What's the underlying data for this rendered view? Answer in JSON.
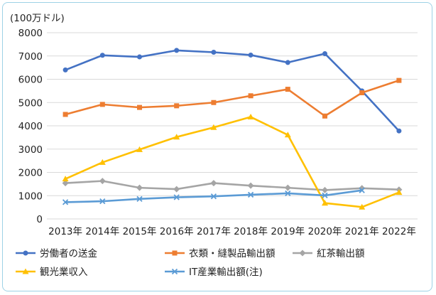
{
  "chart_data": {
    "type": "line",
    "unit_label": "(100万ドル)",
    "categories": [
      "2013年",
      "2014年",
      "2015年",
      "2016年",
      "2017年",
      "2018年",
      "2019年",
      "2020年",
      "2021年",
      "2022年"
    ],
    "ylim": [
      0,
      8000
    ],
    "yticks": [
      "0",
      "1000",
      "2000",
      "3000",
      "4000",
      "5000",
      "6000",
      "7000",
      "8000"
    ],
    "grid": true,
    "legend_position": "bottom",
    "series": [
      {
        "name": "労働者の送金",
        "color": "#4472c4",
        "marker": "circle",
        "values": [
          6400,
          7030,
          6960,
          7240,
          7160,
          7040,
          6720,
          7100,
          5500,
          3780
        ]
      },
      {
        "name": "衣類・縫製品輸出額",
        "color": "#ed7d31",
        "marker": "square",
        "values": [
          4490,
          4920,
          4790,
          4860,
          5000,
          5290,
          5570,
          4420,
          5420,
          5950
        ]
      },
      {
        "name": "紅茶輸出額",
        "color": "#a5a5a5",
        "marker": "diamond",
        "values": [
          1540,
          1630,
          1340,
          1280,
          1540,
          1430,
          1340,
          1240,
          1320,
          1260
        ]
      },
      {
        "name": "観光業収入",
        "color": "#ffc000",
        "marker": "triangle",
        "values": [
          1720,
          2430,
          2980,
          3520,
          3930,
          4380,
          3610,
          680,
          510,
          1140
        ]
      },
      {
        "name": "IT産業輸出額(注)",
        "color": "#5b9bd5",
        "marker": "x",
        "values": [
          720,
          760,
          860,
          930,
          970,
          1040,
          1100,
          1010,
          1230,
          null
        ]
      }
    ]
  }
}
